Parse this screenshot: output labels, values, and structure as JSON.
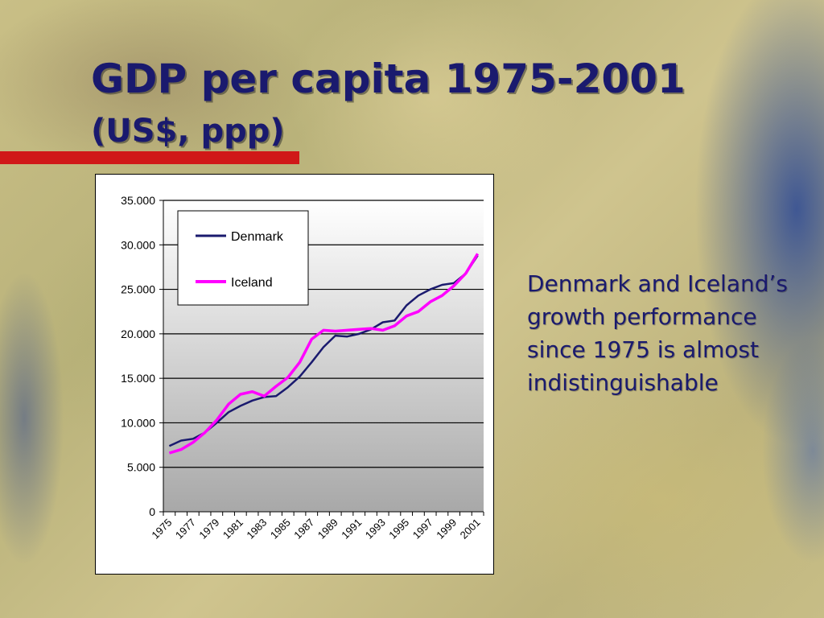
{
  "slide": {
    "title": "GDP per capita 1975-2001",
    "subtitle": "(US$, ppp)",
    "side_text": "Denmark and Iceland’s growth performance since 1975 is almost indistinguishable"
  },
  "colors": {
    "heading": "#1a1a6e",
    "accent_rule": "#d01818",
    "denmark": "#1a1a6e",
    "iceland": "#ff00ff"
  },
  "chart_data": {
    "type": "line",
    "title": "",
    "xlabel": "",
    "ylabel": "",
    "x": [
      1975,
      1976,
      1977,
      1978,
      1979,
      1980,
      1981,
      1982,
      1983,
      1984,
      1985,
      1986,
      1987,
      1988,
      1989,
      1990,
      1991,
      1992,
      1993,
      1994,
      1995,
      1996,
      1997,
      1998,
      1999,
      2000,
      2001
    ],
    "x_tick_labels": [
      "1975",
      "1977",
      "1979",
      "1981",
      "1983",
      "1985",
      "1987",
      "1989",
      "1991",
      "1993",
      "1995",
      "1997",
      "1999",
      "2001"
    ],
    "y_tick_labels": [
      "0",
      "5.000",
      "10.000",
      "15.000",
      "20.000",
      "25.000",
      "30.000",
      "35.000"
    ],
    "ylim": [
      0,
      35000
    ],
    "y_ticks": [
      0,
      5000,
      10000,
      15000,
      20000,
      25000,
      30000,
      35000
    ],
    "grid": true,
    "legend_position": "top-left",
    "series": [
      {
        "name": "Denmark",
        "color": "#1a1a6e",
        "values": [
          7400,
          8000,
          8200,
          8900,
          10000,
          11200,
          11900,
          12500,
          12900,
          13000,
          14000,
          15200,
          16800,
          18500,
          19800,
          19700,
          20000,
          20500,
          21300,
          21500,
          23200,
          24300,
          25000,
          25500,
          25700,
          26800,
          28800
        ]
      },
      {
        "name": "Iceland",
        "color": "#ff00ff",
        "values": [
          6600,
          7000,
          7800,
          8900,
          10300,
          12100,
          13200,
          13500,
          13000,
          14100,
          15100,
          16800,
          19400,
          20400,
          20300,
          20400,
          20500,
          20600,
          20400,
          20900,
          22000,
          22500,
          23600,
          24300,
          25400,
          26800,
          29000
        ]
      }
    ]
  }
}
